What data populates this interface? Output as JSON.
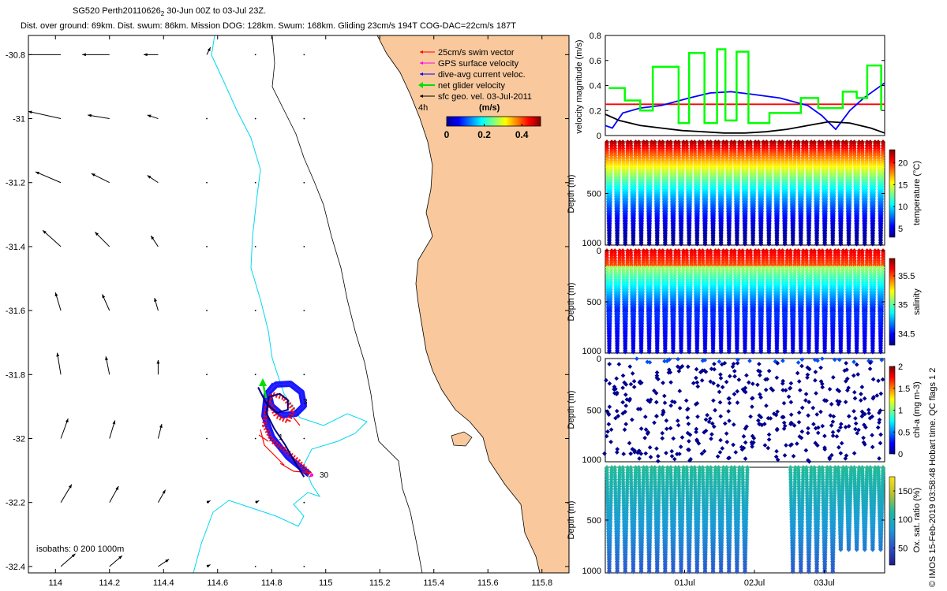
{
  "header": {
    "line1_prefix": "SG520 Perth20110626",
    "line1_sub": "2",
    "line1_suffix": " 30-Jun 00Z to 03-Jul 23Z.",
    "line2": "Dist. over ground: 69km. Dist. swum: 86km. Mission DOG: 128km. Swum: 168km. Gliding 23cm/s 194T COG-DAC=22cm/s 187T"
  },
  "chart_data": [
    {
      "type": "map",
      "xlim": [
        113.9,
        115.9
      ],
      "ylim": [
        -32.42,
        -30.74
      ],
      "x_ticks": [
        114,
        114.2,
        114.4,
        114.6,
        114.8,
        115,
        115.2,
        115.4,
        115.6,
        115.8
      ],
      "x_tick_labels": [
        "114",
        "114.2",
        "114.4",
        "114.6",
        "114.8",
        "115",
        "115.2",
        "115.4",
        "115.6",
        "115.8"
      ],
      "y_ticks": [
        -30.8,
        -31,
        -31.2,
        -31.4,
        -31.6,
        -31.8,
        -32,
        -32.2,
        -32.4
      ],
      "y_tick_labels": [
        "-30.8",
        "-31",
        "-31.2",
        "-31.4",
        "-31.6",
        "-31.8",
        "-32",
        "-32.2",
        "-32.4"
      ],
      "legend": [
        {
          "label": "25cm/s swim vector",
          "color": "#ff0000"
        },
        {
          "label": "GPS surface velocity",
          "color": "#ff00ff"
        },
        {
          "label": "dive-avg current veloc.",
          "color": "#0000ff"
        },
        {
          "label": "net glider velocity",
          "color": "#00ff00"
        },
        {
          "label": "sfc geo. vel. 03-Jul-2011",
          "color": "#000000"
        }
      ],
      "legend_note": "4h",
      "colorbar": {
        "title": "(m/s)",
        "ticks": [
          0,
          0.2,
          0.4
        ],
        "tick_labels": [
          "0",
          "0.2",
          "0.4"
        ],
        "range": [
          0,
          0.5
        ]
      },
      "isobaths_label": "isobaths: 0   200  1000m",
      "track_labels": [
        {
          "text": "1",
          "lon": 114.82,
          "lat": -31.99
        },
        {
          "text": "30",
          "lon": 114.96,
          "lat": -32.12
        },
        {
          "text": "3",
          "lon": 114.88,
          "lat": -31.89
        }
      ],
      "glider_track": [
        [
          114.92,
          -32.12
        ],
        [
          114.89,
          -32.08
        ],
        [
          114.85,
          -32.02
        ],
        [
          114.81,
          -31.97
        ],
        [
          114.78,
          -31.92
        ],
        [
          114.79,
          -31.87
        ],
        [
          114.83,
          -31.86
        ],
        [
          114.86,
          -31.88
        ],
        [
          114.86,
          -31.91
        ],
        [
          114.82,
          -31.92
        ],
        [
          114.78,
          -31.89
        ],
        [
          114.75,
          -31.84
        ]
      ],
      "geo_velocity_field": {
        "lons": [
          114.02,
          114.2,
          114.38,
          114.56,
          114.74,
          114.92
        ],
        "lats": [
          -30.8,
          -31.0,
          -31.2,
          -31.4,
          -31.6,
          -31.8,
          -32.0,
          -32.2,
          -32.4
        ],
        "u": [
          [
            -0.2,
            -0.15,
            -0.08,
            0.02,
            0,
            0
          ],
          [
            -0.18,
            -0.12,
            -0.06,
            0,
            0,
            0
          ],
          [
            -0.14,
            -0.1,
            -0.06,
            0,
            0,
            0
          ],
          [
            -0.1,
            -0.08,
            -0.04,
            0,
            0,
            0
          ],
          [
            -0.03,
            -0.04,
            -0.02,
            0,
            0,
            0
          ],
          [
            -0.02,
            -0.02,
            0,
            0,
            0,
            0
          ],
          [
            0.04,
            0.03,
            0.02,
            0,
            0,
            0
          ],
          [
            0.06,
            0.05,
            0.04,
            0.02,
            0.02,
            0
          ],
          [
            0.08,
            0.07,
            0.06,
            0.02,
            0,
            0
          ]
        ],
        "v": [
          [
            0,
            0,
            0,
            0.04,
            0,
            0
          ],
          [
            0.04,
            0.02,
            0.02,
            0,
            0,
            0
          ],
          [
            0.06,
            0.05,
            0.04,
            0,
            0,
            0
          ],
          [
            0.09,
            0.08,
            0.06,
            0,
            0,
            0
          ],
          [
            0.1,
            0.09,
            0.07,
            0,
            0,
            0
          ],
          [
            0.12,
            0.1,
            0.08,
            0,
            0,
            0
          ],
          [
            0.11,
            0.1,
            0.08,
            0,
            0,
            0
          ],
          [
            0.1,
            0.09,
            0.07,
            0.01,
            0.01,
            0
          ],
          [
            0.07,
            0.06,
            0.04,
            0.01,
            0,
            0
          ]
        ]
      }
    },
    {
      "type": "line",
      "ylabel": "velocity magnitude (m/s)",
      "ylim": [
        0,
        0.8
      ],
      "y_ticks": [
        0,
        0.2,
        0.4,
        0.6,
        0.8
      ],
      "y_tick_labels": [
        "0",
        "0.2",
        "0.4",
        "0.6",
        "0.8"
      ],
      "xlim": [
        0,
        4
      ],
      "series": [
        {
          "color": "#ff0000",
          "x": [
            0,
            4
          ],
          "y": [
            0.25,
            0.25
          ]
        },
        {
          "color": "#0000ff",
          "x": [
            0,
            0.1,
            0.25,
            0.5,
            0.8,
            1.2,
            1.5,
            1.8,
            2.1,
            2.5,
            2.9,
            3.1,
            3.3,
            3.5,
            3.7,
            4
          ],
          "y": [
            0.08,
            0.06,
            0.18,
            0.22,
            0.24,
            0.3,
            0.34,
            0.35,
            0.33,
            0.3,
            0.24,
            0.16,
            0.05,
            0.2,
            0.3,
            0.42
          ]
        },
        {
          "color": "#000000",
          "x": [
            0,
            0.2,
            0.5,
            0.8,
            1.1,
            1.4,
            1.7,
            2.0,
            2.3,
            2.6,
            2.9,
            3.2,
            3.5,
            3.8,
            4
          ],
          "y": [
            0.17,
            0.12,
            0.08,
            0.06,
            0.04,
            0.03,
            0.02,
            0.02,
            0.03,
            0.05,
            0.08,
            0.11,
            0.1,
            0.06,
            0.02
          ]
        },
        {
          "color": "#00ff00",
          "x": [
            0.05,
            0.28,
            0.28,
            0.5,
            0.5,
            0.68,
            0.68,
            1.05,
            1.05,
            1.2,
            1.2,
            1.42,
            1.42,
            1.6,
            1.6,
            1.72,
            1.72,
            1.88,
            1.88,
            2.05,
            2.05,
            2.35,
            2.35,
            2.8,
            2.8,
            3.05,
            3.05,
            3.4,
            3.4,
            3.6,
            3.6,
            3.75,
            3.75,
            3.95,
            3.95
          ],
          "y": [
            0.38,
            0.38,
            0.28,
            0.28,
            0.2,
            0.2,
            0.55,
            0.55,
            0.1,
            0.1,
            0.66,
            0.66,
            0.1,
            0.1,
            0.69,
            0.69,
            0.12,
            0.12,
            0.67,
            0.67,
            0.1,
            0.1,
            0.18,
            0.18,
            0.3,
            0.3,
            0.22,
            0.22,
            0.35,
            0.35,
            0.3,
            0.3,
            0.56,
            0.56,
            0.2
          ]
        }
      ]
    },
    {
      "type": "scatter",
      "ylabel": "Depth (m)",
      "colorbar_label": "temperature (°C)",
      "ylim": [
        1000,
        0
      ],
      "y_ticks": [
        500,
        1000
      ],
      "y_tick_labels": [
        "500",
        "1000"
      ],
      "clim": [
        3,
        23
      ],
      "colorbar_ticks": [
        5,
        10,
        15,
        20
      ],
      "colorbar_tick_labels": [
        "5",
        "10",
        "15",
        "20"
      ],
      "dive_count": 35,
      "dive_depth_max": 1000
    },
    {
      "type": "scatter",
      "ylabel": "Depth (m)",
      "colorbar_label": "salinity",
      "ylim": [
        1000,
        0
      ],
      "y_ticks": [
        0,
        500,
        1000
      ],
      "y_tick_labels": [
        "0",
        "500",
        "1000"
      ],
      "clim": [
        34.3,
        35.8
      ],
      "colorbar_ticks": [
        34.5,
        35,
        35.5
      ],
      "colorbar_tick_labels": [
        "34.5",
        "35",
        "35.5"
      ],
      "dive_count": 35
    },
    {
      "type": "scatter",
      "ylabel": "Depth (m)",
      "colorbar_label": "chl-a (mg m-3)",
      "ylim": [
        1000,
        0
      ],
      "y_ticks": [
        0,
        500,
        1000
      ],
      "y_tick_labels": [
        "0",
        "500",
        "1000"
      ],
      "clim": [
        0,
        2
      ],
      "colorbar_ticks": [
        0,
        0.5,
        1,
        1.5,
        2
      ],
      "colorbar_tick_labels": [
        "0",
        "0.5",
        "1",
        "1.5",
        "2"
      ]
    },
    {
      "type": "scatter",
      "ylabel": "Depth (m)",
      "colorbar_label": "Ox. sat. ratio (%)",
      "ylim": [
        1000,
        0
      ],
      "y_ticks": [
        500,
        1000
      ],
      "y_tick_labels": [
        "500",
        "1000"
      ],
      "clim": [
        20,
        175
      ],
      "colorbar_ticks": [
        50,
        100,
        150
      ],
      "colorbar_tick_labels": [
        "50",
        "100",
        "150"
      ],
      "x_tick_labels": [
        "01Jul",
        "02Jul",
        "03Jul"
      ],
      "x_tick_positions_days": [
        1,
        2,
        3
      ],
      "gap_days": [
        2.0,
        2.7
      ]
    }
  ],
  "footer_note": "© IMOS 15-Feb-2019 03:58:48 Hobart time. QC flags 1  2"
}
